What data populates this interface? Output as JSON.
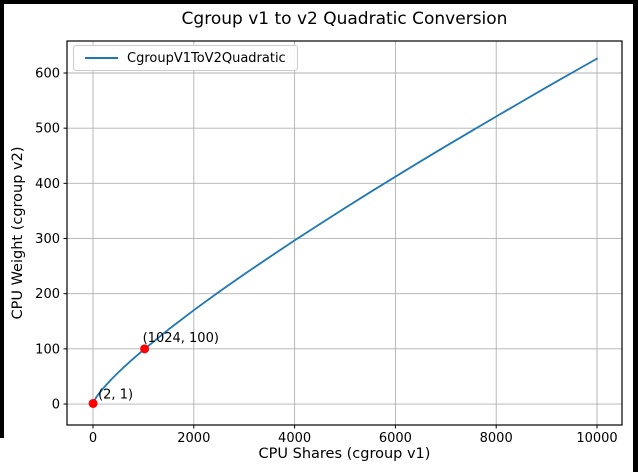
{
  "window": {
    "background": "#ffffff",
    "frame_color": "#000000"
  },
  "chart_data": {
    "type": "line",
    "title": "Cgroup v1 to v2 Quadratic Conversion",
    "xlabel": "CPU Shares (cgroup v1)",
    "ylabel": "CPU Weight (cgroup v2)",
    "grid": true,
    "legend": {
      "position": "upper left",
      "entries": [
        {
          "label": "CgroupV1ToV2Quadratic",
          "color": "#1f77b4"
        }
      ]
    },
    "xlim": [
      -516,
      10496
    ],
    "ylim": [
      -38,
      658
    ],
    "xticks": [
      0,
      2000,
      4000,
      6000,
      8000,
      10000
    ],
    "yticks": [
      0,
      100,
      200,
      300,
      400,
      500,
      600
    ],
    "series": [
      {
        "name": "CgroupV1ToV2Quadratic",
        "color": "#1f77b4",
        "x": [
          2,
          50,
          100,
          200,
          350,
          500,
          750,
          1024,
          1500,
          2000,
          2500,
          3000,
          3500,
          4000,
          4500,
          5000,
          5500,
          6000,
          6500,
          7000,
          7500,
          8000,
          8500,
          9000,
          9500,
          10000
        ],
        "y": [
          1,
          10,
          16.7,
          28.2,
          43.3,
          57.1,
          78.3,
          100,
          135.2,
          170.0,
          203.2,
          235.2,
          266.2,
          296.5,
          326.2,
          355.3,
          383.9,
          412.1,
          439.9,
          467.3,
          494.3,
          521.2,
          547.7,
          574.2,
          600.1,
          626.1
        ]
      }
    ],
    "markers": [
      {
        "x": 2,
        "y": 1,
        "label": "(2, 1)",
        "color": "#ff0000",
        "label_offset": [
          5,
          -5
        ]
      },
      {
        "x": 1024,
        "y": 100,
        "label": "(1024, 100)",
        "color": "#ff0000",
        "label_offset": [
          -2,
          -7
        ]
      }
    ],
    "colors": {
      "line": "#1f77b4",
      "marker": "#ff0000",
      "grid": "#b0b0b0",
      "spine": "#000000",
      "text": "#000000"
    }
  }
}
